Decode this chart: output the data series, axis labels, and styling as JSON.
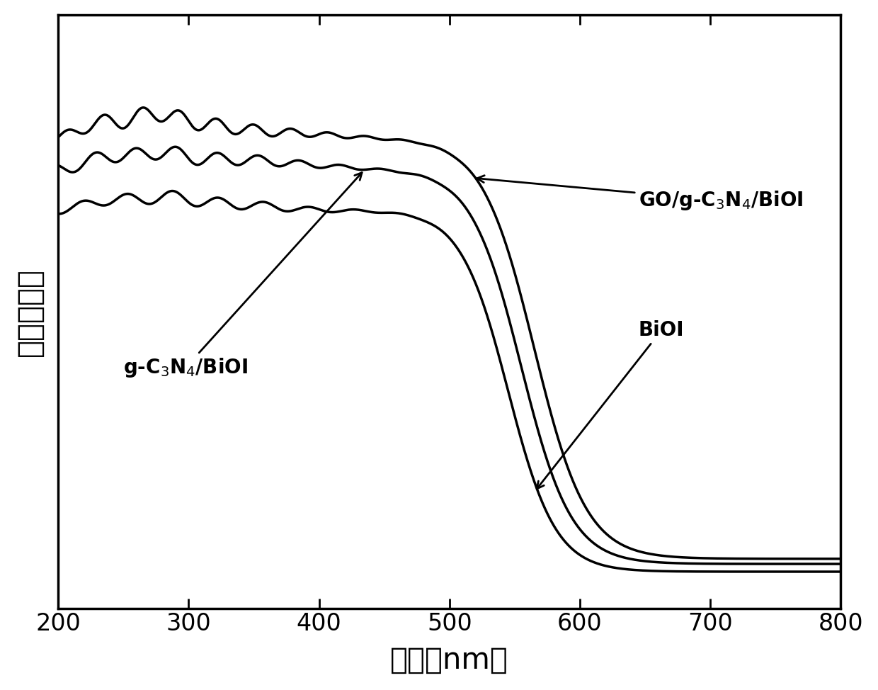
{
  "xlabel": "波长（nm）",
  "ylabel": "相对吸光度",
  "xlim": [
    200,
    800
  ],
  "xticks": [
    200,
    300,
    400,
    500,
    600,
    700,
    800
  ],
  "line_color": "#000000",
  "background_color": "#ffffff",
  "xlabel_fontsize": 30,
  "ylabel_fontsize": 30,
  "tick_fontsize": 24,
  "annotation_fontsize": 20,
  "linewidth": 2.5
}
